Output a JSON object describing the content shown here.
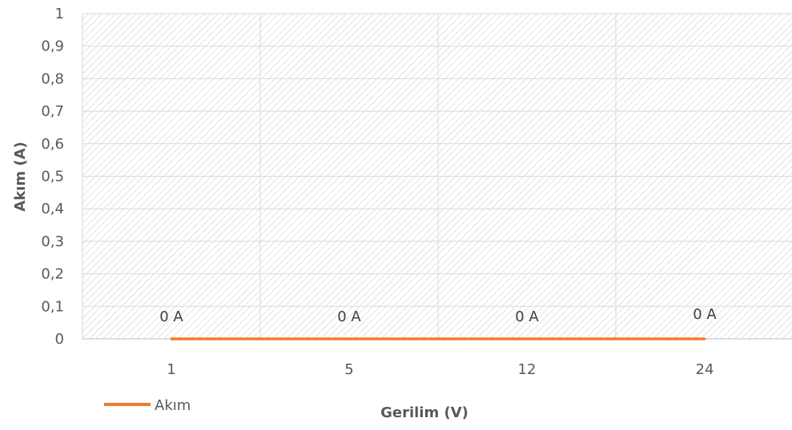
{
  "chart_data": {
    "type": "line",
    "categories": [
      "1",
      "5",
      "12",
      "24"
    ],
    "series": [
      {
        "name": "Akım",
        "values": [
          0,
          0,
          0,
          0
        ],
        "color": "#ED7D31"
      }
    ],
    "data_labels": [
      "0 A",
      "0 A",
      "0 A",
      "0 A"
    ],
    "title": "",
    "xlabel": "Gerilim (V)",
    "ylabel": "Akım (A)",
    "ylim": [
      0,
      1
    ],
    "yticks": [
      "0",
      "0,1",
      "0,2",
      "0,3",
      "0,4",
      "0,5",
      "0,6",
      "0,7",
      "0,8",
      "0,9",
      "1"
    ],
    "grid": true,
    "plot_fill": "hatched",
    "legend_placement": "bottom-left"
  }
}
